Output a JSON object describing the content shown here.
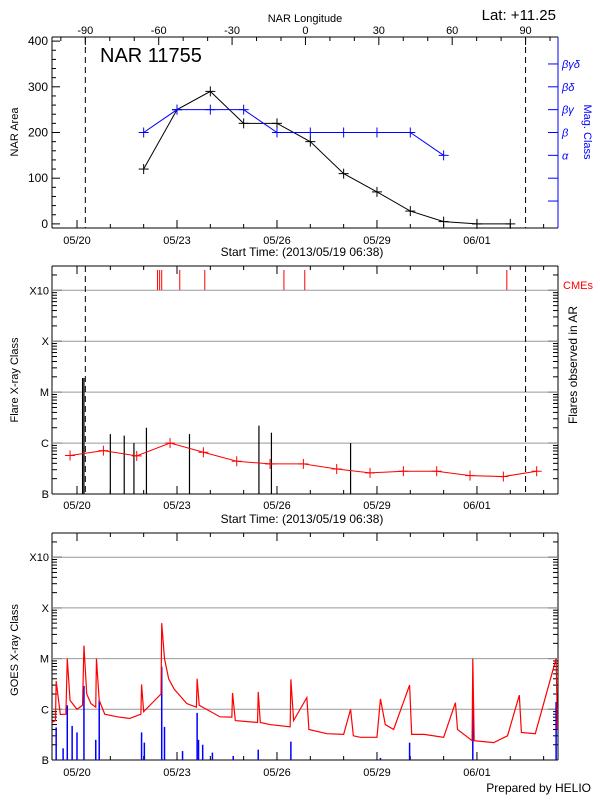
{
  "colors": {
    "area": "#000000",
    "mag_class": "#0000ff",
    "flares": "#000000",
    "flare_average": "#ff0000",
    "cme": "#ff0000",
    "goes_long": "#ff0000",
    "goes_short": "#0000ff",
    "grid": "#999999"
  },
  "footer": "Prepared by HELIO",
  "chart_data": [
    {
      "type": "line",
      "title": "NAR 11755",
      "lat_label": "Lat: +11.25",
      "top_axis_label": "NAR Longitude",
      "top_axis_ticks": [
        -90,
        -60,
        -30,
        0,
        30,
        60,
        90
      ],
      "xlabel": "Start Time: (2013/05/19 06:38)",
      "x_tick_labels": [
        "05/20",
        "05/23",
        "05/26",
        "05/29",
        "06/01"
      ],
      "x_tick_dates": [
        "2013-05-20",
        "2013-05-23",
        "2013-05-26",
        "2013-05-29",
        "2013-06-01"
      ],
      "xlim": [
        "2013-05-19T06:00",
        "2013-06-03T10:20"
      ],
      "limb_times": [
        "2013-05-20T06:00",
        "2013-06-02T11:00"
      ],
      "ylabel": "NAR Area",
      "ylim": [
        -9,
        409
      ],
      "y_ticks": [
        0,
        100,
        200,
        300,
        400
      ],
      "y2label": "Mag. Class",
      "mag_class_ticks": [
        "",
        "",
        "α",
        "β",
        "βγ",
        "βδ",
        "βγδ"
      ],
      "series": [
        {
          "name": "NAR Area",
          "x": [
            "2013-05-22",
            "2013-05-23",
            "2013-05-24",
            "2013-05-25",
            "2013-05-26",
            "2013-05-27",
            "2013-05-28",
            "2013-05-29",
            "2013-05-30",
            "2013-05-31",
            "2013-06-01",
            "2013-06-02"
          ],
          "values": [
            120,
            250,
            290,
            220,
            220,
            180,
            110,
            70,
            28,
            5,
            0,
            0
          ]
        },
        {
          "name": "Mag. Class",
          "x": [
            "2013-05-22",
            "2013-05-23",
            "2013-05-24",
            "2013-05-25",
            "2013-05-26",
            "2013-05-27",
            "2013-05-28",
            "2013-05-29",
            "2013-05-30",
            "2013-05-31"
          ],
          "values": [
            "β",
            "βγ",
            "βγ",
            "βγ",
            "β",
            "β",
            "β",
            "β",
            "β",
            "α"
          ]
        }
      ]
    },
    {
      "type": "bar",
      "xlabel": "Start Time: (2013/05/19 06:38)",
      "x_tick_labels": [
        "05/20",
        "05/23",
        "05/26",
        "05/29",
        "06/01"
      ],
      "ylabel": "Flare X-ray Class",
      "y2label": "Flares observed in AR",
      "y_scale": "log",
      "ylim": [
        1e-07,
        0.003
      ],
      "y_tick_labels": [
        "B",
        "C",
        "M",
        "X",
        "X10"
      ],
      "y_tick_values": [
        1e-07,
        1e-06,
        1e-05,
        0.0001,
        0.001
      ],
      "grid": true,
      "cme_label": "CMEs",
      "cmes": [
        "2013-05-22T10:00",
        "2013-05-22T11:30",
        "2013-05-22T13:00",
        "2013-05-23T02:00",
        "2013-05-23T20:00",
        "2013-05-26T05:00",
        "2013-05-26T20:00",
        "2013-06-01T21:30"
      ],
      "flares": [
        [
          "2013-05-20T04:00",
          1.9e-05
        ],
        [
          "2013-05-20T05:00",
          1.9e-05
        ],
        [
          "2013-05-21T00:00",
          1.5e-06
        ],
        [
          "2013-05-21T10:00",
          1.4e-06
        ],
        [
          "2013-05-21T17:00",
          1e-06
        ],
        [
          "2013-05-22T02:00",
          2e-06
        ],
        [
          "2013-05-23T09:00",
          1.5e-06
        ],
        [
          "2013-05-25T11:00",
          2.2e-06
        ],
        [
          "2013-05-25T20:00",
          1.6e-06
        ],
        [
          "2013-05-28T05:00",
          1e-06
        ]
      ],
      "average": [
        [
          "2013-05-19T19:00",
          5.7e-07
        ],
        [
          "2013-05-20T19:00",
          7.1e-07
        ],
        [
          "2013-05-21T19:00",
          5.6e-07
        ],
        [
          "2013-05-22T19:00",
          1e-06
        ],
        [
          "2013-05-23T19:00",
          6.6e-07
        ],
        [
          "2013-05-24T19:00",
          4.4e-07
        ],
        [
          "2013-05-25T19:00",
          3.9e-07
        ],
        [
          "2013-05-26T19:00",
          3.9e-07
        ],
        [
          "2013-05-27T19:00",
          3.1e-07
        ],
        [
          "2013-05-28T19:00",
          2.6e-07
        ],
        [
          "2013-05-29T19:00",
          2.8e-07
        ],
        [
          "2013-05-30T19:00",
          2.8e-07
        ],
        [
          "2013-05-31T19:00",
          2.3e-07
        ],
        [
          "2013-06-01T19:00",
          2.2e-07
        ],
        [
          "2013-06-02T19:00",
          2.8e-07
        ]
      ]
    },
    {
      "type": "line",
      "x_tick_labels": [
        "05/20",
        "05/23",
        "05/26",
        "05/29",
        "06/01"
      ],
      "ylabel": "GOES X-ray Class",
      "y_scale": "log",
      "ylim": [
        1e-07,
        0.003
      ],
      "y_tick_labels": [
        "B",
        "C",
        "M",
        "X",
        "X10"
      ],
      "grid": true,
      "series": [
        {
          "color": "red",
          "points": [
            [
              "2013-05-19T06:00",
              5.6e-07
            ],
            [
              "2013-05-19T08:30",
              6e-07
            ],
            [
              "2013-05-19T09:00",
              3.6e-06
            ],
            [
              "2013-05-19T12:00",
              7.9e-07
            ],
            [
              "2013-05-19T16:00",
              8e-07
            ],
            [
              "2013-05-19T17:00",
              1e-05
            ],
            [
              "2013-05-19T19:00",
              1.5e-06
            ],
            [
              "2013-05-20T00:00",
              1e-06
            ],
            [
              "2013-05-20T04:00",
              1.2e-06
            ],
            [
              "2013-05-20T05:00",
              1.8e-05
            ],
            [
              "2013-05-20T07:00",
              2e-06
            ],
            [
              "2013-05-20T10:00",
              1.3e-06
            ],
            [
              "2013-05-20T13:30",
              1.1e-06
            ],
            [
              "2013-05-20T14:00",
              1e-05
            ],
            [
              "2013-05-20T16:00",
              1.5e-06
            ],
            [
              "2013-05-20T20:00",
              8e-07
            ],
            [
              "2013-05-21T05:00",
              7.1e-07
            ],
            [
              "2013-05-21T14:00",
              6.6e-07
            ],
            [
              "2013-05-21T22:00",
              8e-07
            ],
            [
              "2013-05-21T22:30",
              3.1e-06
            ],
            [
              "2013-05-22T00:00",
              9e-07
            ],
            [
              "2013-05-22T08:00",
              1.5e-06
            ],
            [
              "2013-05-22T12:30",
              2e-06
            ],
            [
              "2013-05-22T13:00",
              5e-05
            ],
            [
              "2013-05-22T15:00",
              1e-05
            ],
            [
              "2013-05-22T18:00",
              4e-06
            ],
            [
              "2013-05-22T22:00",
              2.5e-06
            ],
            [
              "2013-05-23T07:00",
              1.3e-06
            ],
            [
              "2013-05-23T14:00",
              1.1e-06
            ],
            [
              "2013-05-23T14:30",
              4e-06
            ],
            [
              "2013-05-23T16:00",
              1.2e-06
            ],
            [
              "2013-05-24T07:00",
              7.1e-07
            ],
            [
              "2013-05-24T15:30",
              7e-07
            ],
            [
              "2013-05-24T16:00",
              2.1e-06
            ],
            [
              "2013-05-24T18:00",
              6e-07
            ],
            [
              "2013-05-25T10:00",
              5.5e-07
            ],
            [
              "2013-05-25T10:30",
              2.2e-06
            ],
            [
              "2013-05-25T12:00",
              5.5e-07
            ],
            [
              "2013-05-25T19:00",
              5e-07
            ],
            [
              "2013-05-26T09:30",
              4.5e-07
            ],
            [
              "2013-05-26T10:00",
              3.9e-06
            ],
            [
              "2013-05-26T12:00",
              6e-07
            ],
            [
              "2013-05-26T21:30",
              1.7e-06
            ],
            [
              "2013-05-26T23:00",
              4e-07
            ],
            [
              "2013-05-27T12:00",
              3.3e-07
            ],
            [
              "2013-05-28T00:00",
              3.2e-07
            ],
            [
              "2013-05-28T05:00",
              1e-06
            ],
            [
              "2013-05-28T07:00",
              3e-07
            ],
            [
              "2013-05-28T12:00",
              2.8e-07
            ],
            [
              "2013-05-29T00:00",
              2.8e-07
            ],
            [
              "2013-05-29T02:30",
              1.6e-06
            ],
            [
              "2013-05-29T06:00",
              5e-07
            ],
            [
              "2013-05-29T12:00",
              4e-07
            ],
            [
              "2013-05-29T23:30",
              3e-06
            ],
            [
              "2013-05-30T01:00",
              3.2e-07
            ],
            [
              "2013-05-30T10:00",
              3.2e-07
            ],
            [
              "2013-05-31T00:00",
              2.8e-07
            ],
            [
              "2013-05-31T08:30",
              1.35e-06
            ],
            [
              "2013-05-31T10:00",
              4e-07
            ],
            [
              "2013-05-31T20:30",
              2.4e-07
            ],
            [
              "2013-05-31T21:00",
              1e-05
            ],
            [
              "2013-05-31T22:00",
              2.4e-07
            ],
            [
              "2013-06-01T12:00",
              2.2e-07
            ],
            [
              "2013-06-01T22:00",
              3e-07
            ],
            [
              "2013-06-02T06:30",
              1.9e-06
            ],
            [
              "2013-06-02T08:00",
              3.5e-07
            ],
            [
              "2013-06-02T18:00",
              3.3e-07
            ],
            [
              "2013-06-03T09:00",
              1e-05
            ],
            [
              "2013-06-03T10:00",
              4e-07
            ]
          ]
        },
        {
          "color": "blue",
          "points": [
            [
              "2013-05-19T09:00",
              4.4e-07
            ],
            [
              "2013-05-19T14:00",
              1.7e-07
            ],
            [
              "2013-05-19T17:00",
              1.2e-06
            ],
            [
              "2013-05-19T20:30",
              4.7e-07
            ],
            [
              "2013-05-20T00:00",
              3.5e-07
            ],
            [
              "2013-05-20T05:00",
              2.9e-06
            ],
            [
              "2013-05-20T13:30",
              2.5e-07
            ],
            [
              "2013-05-20T16:00",
              1.5e-06
            ],
            [
              "2013-05-21T22:30",
              3.5e-07
            ],
            [
              "2013-05-22T00:30",
              2.2e-07
            ],
            [
              "2013-05-22T13:00",
              6.9e-06
            ],
            [
              "2013-05-22T15:00",
              4.5e-07
            ],
            [
              "2013-05-23T04:00",
              1.5e-07
            ],
            [
              "2013-05-23T14:30",
              8.5e-07
            ],
            [
              "2013-05-23T15:30",
              2.5e-07
            ],
            [
              "2013-05-23T18:30",
              2e-07
            ],
            [
              "2013-05-24T01:30",
              1.4e-07
            ],
            [
              "2013-05-24T16:30",
              1.2e-07
            ],
            [
              "2013-05-25T10:30",
              1.6e-07
            ],
            [
              "2013-05-26T10:00",
              2.3e-07
            ],
            [
              "2013-05-29T02:30",
              1.1e-07
            ],
            [
              "2013-05-29T23:30",
              2.2e-07
            ],
            [
              "2013-05-31T21:00",
              1.6e-06
            ],
            [
              "2013-06-03T09:00",
              1.4e-06
            ]
          ]
        }
      ]
    }
  ]
}
